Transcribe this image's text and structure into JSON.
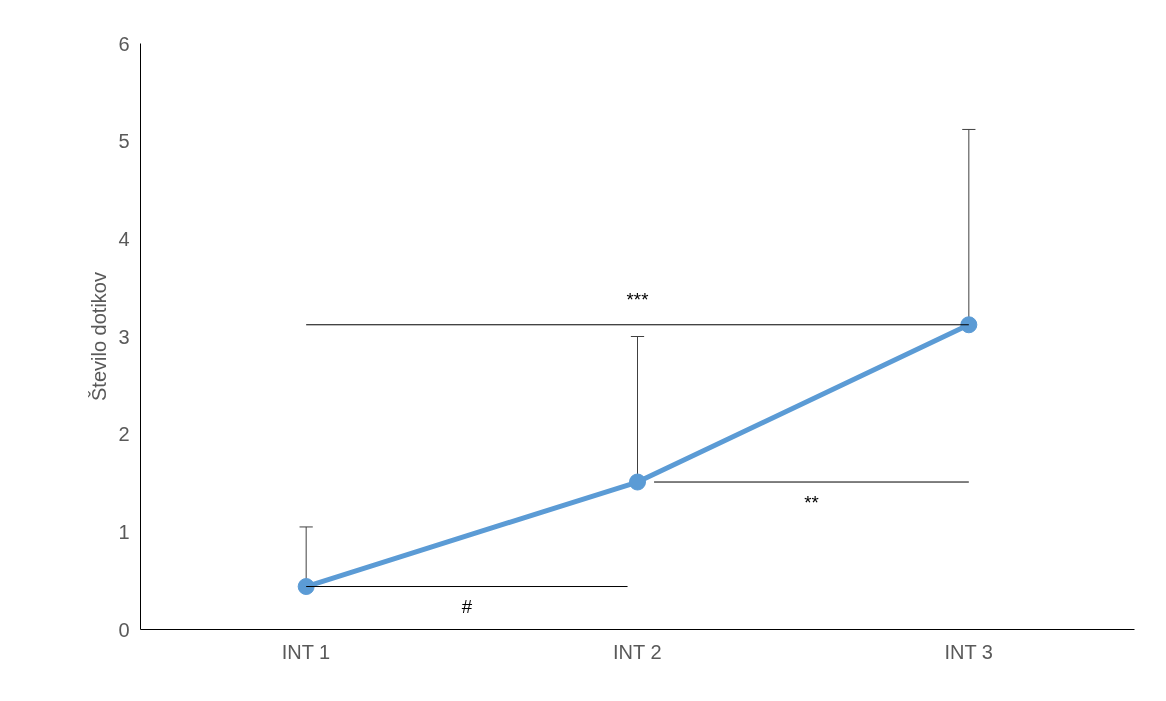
{
  "chart_data": {
    "type": "line",
    "ylabel": "Število dotikov",
    "categories": [
      "INT 1",
      "INT 2",
      "INT 3"
    ],
    "series": [
      {
        "color": "#5b9bd5",
        "values": [
          0.44,
          1.51,
          3.12
        ],
        "errors": [
          [
            0.44,
            1.05
          ],
          [
            1.51,
            3.0
          ],
          [
            3.12,
            5.12
          ]
        ]
      }
    ],
    "ylim": [
      0,
      6
    ],
    "yticks": [
      0,
      1,
      2,
      3,
      4,
      5,
      6
    ],
    "grid": false,
    "marker": "circle",
    "line_style": "solid",
    "annotations": [
      "#",
      "**",
      "***"
    ]
  }
}
